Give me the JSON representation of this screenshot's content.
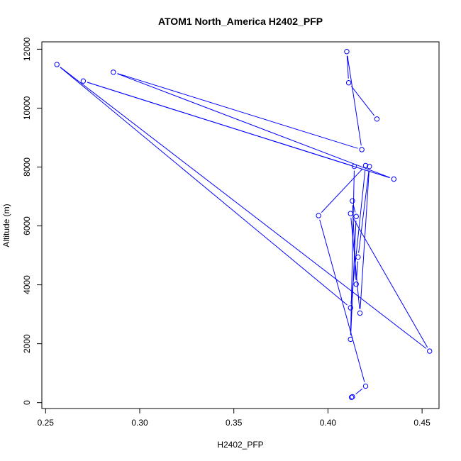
{
  "chart_data": {
    "type": "line",
    "title": "ATOM1 North_America H2402_PFP",
    "xlabel": "H2402_PFP",
    "ylabel": "Altitude (m)",
    "xlim": [
      0.248,
      0.459
    ],
    "ylim": [
      -200,
      12250
    ],
    "x_ticks": [
      "0.25",
      "0.30",
      "0.35",
      "0.40",
      "0.45"
    ],
    "y_ticks": [
      "0",
      "2000",
      "4000",
      "6000",
      "8000",
      "10000",
      "12000"
    ],
    "series": [
      {
        "color": "#0000ff",
        "marker": "open-circle",
        "line": true,
        "points": [
          {
            "x": 0.4125,
            "y": 180
          },
          {
            "x": 0.413,
            "y": 200
          },
          {
            "x": 0.42,
            "y": 560
          },
          {
            "x": 0.395,
            "y": 6350
          },
          {
            "x": 0.42,
            "y": 8050
          },
          {
            "x": 0.412,
            "y": 3220
          },
          {
            "x": 0.256,
            "y": 11480
          },
          {
            "x": 0.454,
            "y": 1750
          },
          {
            "x": 0.412,
            "y": 6420
          },
          {
            "x": 0.417,
            "y": 3040
          },
          {
            "x": 0.422,
            "y": 8020
          },
          {
            "x": 0.416,
            "y": 4940
          },
          {
            "x": 0.415,
            "y": 4020
          },
          {
            "x": 0.413,
            "y": 6850
          },
          {
            "x": 0.415,
            "y": 6320
          },
          {
            "x": 0.412,
            "y": 2150
          },
          {
            "x": 0.414,
            "y": 8020
          },
          {
            "x": 0.27,
            "y": 10920
          },
          {
            "x": 0.435,
            "y": 7590
          },
          {
            "x": 0.286,
            "y": 11220
          },
          {
            "x": 0.418,
            "y": 8590
          },
          {
            "x": 0.41,
            "y": 11920
          },
          {
            "x": 0.411,
            "y": 10860
          },
          {
            "x": 0.426,
            "y": 9630
          }
        ]
      }
    ],
    "grid": false,
    "legend": "none"
  }
}
